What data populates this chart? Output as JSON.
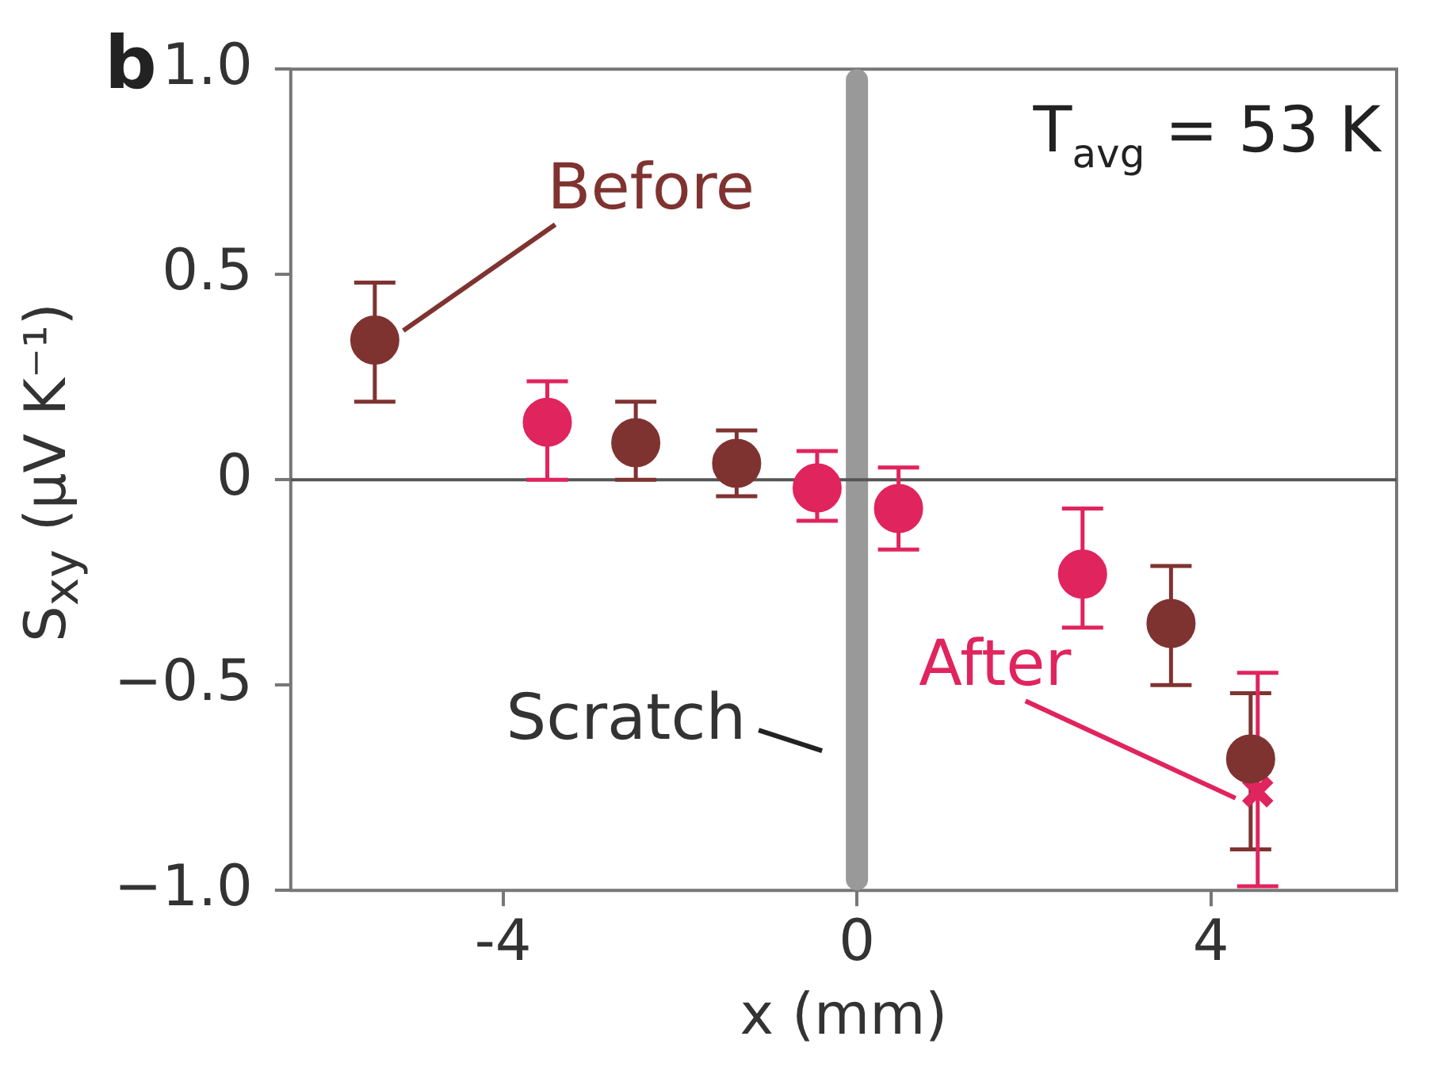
{
  "chart_data": {
    "type": "scatter",
    "xlabel": "x (mm)",
    "ylabel": "S$_{xy}$ (μV K⁻¹)",
    "xlim": [
      -6.4,
      6.1
    ],
    "xticks": [
      -4,
      0,
      4
    ],
    "ylim": [
      -1.0,
      1.0
    ],
    "yticks": [
      {
        "value": -1.0,
        "label": "−1.0"
      },
      {
        "value": -0.5,
        "label": "−0.5"
      },
      {
        "value": 0,
        "label": "0"
      },
      {
        "value": 0.5,
        "label": "0.5"
      },
      {
        "value": 1.0,
        "label": "1.0"
      }
    ],
    "grid": false,
    "legend": false,
    "marker": "circle",
    "series": [
      {
        "name": "Before",
        "color": "#7f3331",
        "x": [
          -5.45,
          -2.5,
          -1.36,
          3.55,
          4.45
        ],
        "values": [
          0.34,
          0.09,
          0.04,
          -0.35,
          -0.68
        ],
        "errors": [
          [
            0.19,
            0.48
          ],
          [
            0.0,
            0.19
          ],
          [
            -0.04,
            0.12
          ],
          [
            -0.5,
            -0.21
          ],
          [
            -0.9,
            -0.52
          ]
        ]
      },
      {
        "color": "#e0245e",
        "x": [
          -3.5,
          -0.45,
          0.47,
          2.55
        ],
        "values": [
          0.14,
          -0.02,
          -0.07,
          -0.23
        ],
        "errors": [
          [
            0.0,
            0.24
          ],
          [
            -0.1,
            0.07
          ],
          [
            -0.17,
            0.03
          ],
          [
            -0.36,
            -0.07
          ]
        ]
      },
      {
        "name": "After",
        "color": "#e0245e",
        "marker": "cross",
        "x": [
          4.53
        ],
        "values": [
          -0.76
        ],
        "errors": [
          [
            -0.99,
            -0.47
          ]
        ]
      }
    ],
    "ref_lines": [
      {
        "axis": "x",
        "value": 0,
        "label": "Scratch",
        "color": "#999999"
      },
      {
        "axis": "y",
        "value": 0,
        "color": "#555555"
      }
    ],
    "annotations": [
      "b",
      "T$_{avg}$ = 53 K"
    ]
  }
}
